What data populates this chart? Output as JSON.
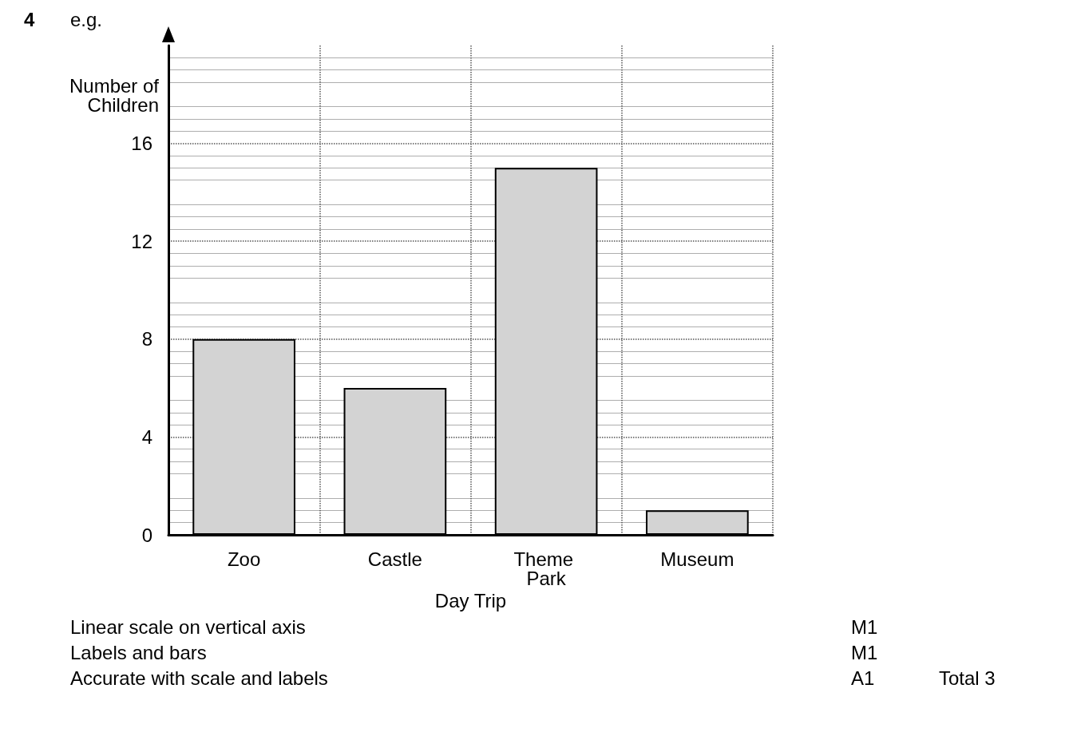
{
  "chart_data": {
    "type": "bar",
    "xlabel": "Day Trip",
    "ylabel": "Number of\nChildren",
    "categories": [
      "Zoo",
      "Castle",
      "Theme Park",
      "Museum"
    ],
    "values": [
      8,
      6,
      15,
      1
    ],
    "color": "#d3d3d3",
    "ylim": [
      0,
      20
    ],
    "yticks": [
      0,
      4,
      8,
      12,
      16
    ],
    "grid": true,
    "annotations": [
      "4",
      "e.g.",
      "Linear scale on vertical axis",
      "Labels and bars",
      "Accurate with scale and labels",
      "M1",
      "M1",
      "A1",
      "Total 3"
    ]
  }
}
